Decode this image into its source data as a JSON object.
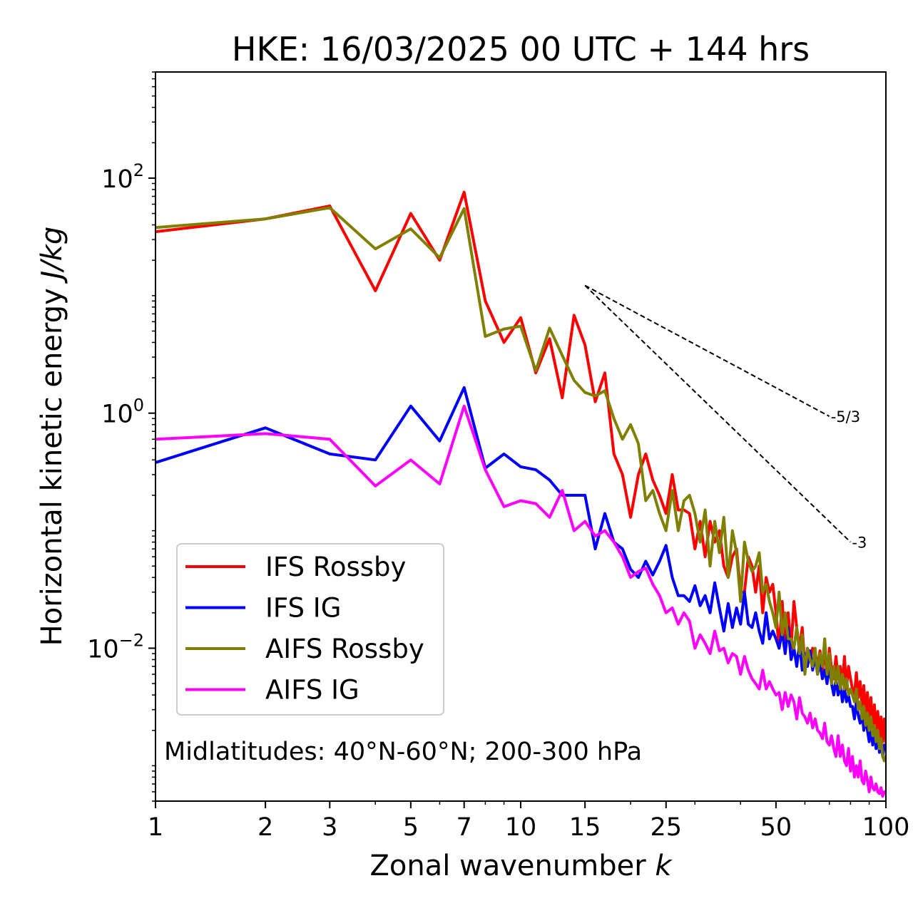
{
  "chart_data": {
    "type": "line",
    "title": "HKE: 16/03/2025 00 UTC + 144 hrs",
    "xlabel": "Zonal wavenumber",
    "xlabel_italic": "k",
    "ylabel": "Horizontal kinetic energy",
    "ylabel_italic": "J/kg",
    "xscale": "log",
    "yscale": "log",
    "xlim": [
      1,
      100
    ],
    "ylim": [
      0.0005,
      800
    ],
    "x_ticks": [
      1,
      2,
      3,
      5,
      7,
      10,
      15,
      25,
      50,
      100
    ],
    "x_tick_labels": [
      "1",
      "2",
      "3",
      "5",
      "7",
      "10",
      "15",
      "25",
      "50",
      "100"
    ],
    "y_ticks": [
      100,
      1,
      0.01
    ],
    "y_tick_labels": [
      {
        "base": "10",
        "exp": "2"
      },
      {
        "base": "10",
        "exp": "0"
      },
      {
        "base": "10",
        "exp": "−2"
      }
    ],
    "annotation": "Midlatitudes: 40°N-60°N; 200-300 hPa",
    "legend_placement": "lower-left",
    "reference_slopes": [
      {
        "label": "-5/3",
        "slope": -1.6667,
        "x": [
          15,
          70
        ],
        "y": [
          12.2,
          0.94
        ]
      },
      {
        "label": "-3",
        "slope": -3,
        "x": [
          15,
          80
        ],
        "y": [
          12.2,
          0.08
        ]
      }
    ],
    "series": [
      {
        "name": "IFS Rossby",
        "color": "#ff0000",
        "x": [
          1,
          2,
          3,
          4,
          5,
          6,
          7,
          8,
          9,
          10,
          11,
          12,
          13,
          14,
          15,
          16,
          17,
          18,
          19,
          20,
          21,
          22,
          23,
          24,
          25,
          26,
          27,
          28,
          29,
          30,
          31,
          32,
          33,
          34,
          35,
          36,
          37,
          38,
          39,
          40,
          41,
          42,
          43,
          44,
          45,
          46,
          47,
          48,
          49,
          50,
          51,
          52,
          53,
          54,
          55,
          56,
          57,
          58,
          59,
          60,
          61,
          62,
          63,
          64,
          65,
          66,
          67,
          68,
          69,
          70,
          71,
          72,
          73,
          74,
          75,
          76,
          77,
          78,
          79,
          80,
          81,
          82,
          83,
          84,
          85,
          86,
          87,
          88,
          89,
          90,
          91,
          92,
          93,
          94,
          95,
          96,
          97,
          98,
          99,
          100
        ],
        "y": [
          35,
          45,
          58,
          11,
          50,
          20,
          76,
          9,
          4,
          6.5,
          2.2,
          4.3,
          1.35,
          6.8,
          3.8,
          1.25,
          2.2,
          0.45,
          0.3,
          0.13,
          0.3,
          0.45,
          0.27,
          0.2,
          0.14,
          0.3,
          0.15,
          0.15,
          0.14,
          0.07,
          0.12,
          0.06,
          0.12,
          0.08,
          0.1,
          0.05,
          0.04,
          0.06,
          0.07,
          0.03,
          0.03,
          0.06,
          0.05,
          0.03,
          0.05,
          0.02,
          0.04,
          0.03,
          0.035,
          0.02,
          0.01,
          0.025,
          0.01,
          0.02,
          0.01,
          0.025,
          0.015,
          0.01,
          0.015,
          0.007,
          0.01,
          0.008,
          0.01,
          0.009,
          0.007,
          0.0095,
          0.006,
          0.012,
          0.005,
          0.01,
          0.0065,
          0.0055,
          0.0085,
          0.0055,
          0.007,
          0.005,
          0.0085,
          0.0045,
          0.007,
          0.0055,
          0.0045,
          0.004,
          0.0062,
          0.0038,
          0.0052,
          0.0032,
          0.0048,
          0.0028,
          0.0042,
          0.0025,
          0.0038,
          0.0021,
          0.0033,
          0.0019,
          0.0029,
          0.0017,
          0.0026,
          0.0016,
          0.0025,
          0.0016
        ]
      },
      {
        "name": "IFS IG",
        "color": "#0000ff",
        "x": [
          1,
          2,
          3,
          4,
          5,
          6,
          7,
          8,
          9,
          10,
          11,
          12,
          13,
          14,
          15,
          16,
          17,
          18,
          19,
          20,
          21,
          22,
          23,
          24,
          25,
          26,
          27,
          28,
          29,
          30,
          31,
          32,
          33,
          34,
          35,
          36,
          37,
          38,
          39,
          40,
          41,
          42,
          43,
          44,
          45,
          46,
          47,
          48,
          49,
          50,
          51,
          52,
          53,
          54,
          55,
          56,
          57,
          58,
          59,
          60,
          61,
          62,
          63,
          64,
          65,
          66,
          67,
          68,
          69,
          70,
          71,
          72,
          73,
          74,
          75,
          76,
          77,
          78,
          79,
          80,
          81,
          82,
          83,
          84,
          85,
          86,
          87,
          88,
          89,
          90,
          91,
          92,
          93,
          94,
          95,
          96,
          97,
          98,
          99,
          100
        ],
        "y": [
          0.38,
          0.75,
          0.45,
          0.4,
          1.15,
          0.58,
          1.65,
          0.34,
          0.45,
          0.35,
          0.33,
          0.27,
          0.2,
          0.2,
          0.2,
          0.07,
          0.14,
          0.08,
          0.07,
          0.047,
          0.04,
          0.055,
          0.042,
          0.055,
          0.075,
          0.04,
          0.028,
          0.028,
          0.025,
          0.034,
          0.023,
          0.028,
          0.02,
          0.036,
          0.022,
          0.014,
          0.024,
          0.015,
          0.022,
          0.016,
          0.03,
          0.016,
          0.015,
          0.02,
          0.014,
          0.011,
          0.02,
          0.012,
          0.014,
          0.012,
          0.01,
          0.014,
          0.009,
          0.015,
          0.008,
          0.01,
          0.007,
          0.011,
          0.0065,
          0.009,
          0.007,
          0.0095,
          0.0065,
          0.0085,
          0.006,
          0.0075,
          0.0055,
          0.0065,
          0.005,
          0.007,
          0.005,
          0.004,
          0.0055,
          0.004,
          0.005,
          0.0035,
          0.0045,
          0.0035,
          0.004,
          0.0032,
          0.0032,
          0.0025,
          0.0035,
          0.0027,
          0.0023,
          0.003,
          0.002,
          0.0025,
          0.002,
          0.0016,
          0.0022,
          0.0015,
          0.002,
          0.0014,
          0.0018,
          0.0013,
          0.0016,
          0.0012,
          0.0015,
          0.0014
        ]
      },
      {
        "name": "AIFS Rossby",
        "color": "#808000",
        "x": [
          1,
          2,
          3,
          4,
          5,
          6,
          7,
          8,
          9,
          10,
          11,
          12,
          13,
          14,
          15,
          16,
          17,
          18,
          19,
          20,
          21,
          22,
          23,
          24,
          25,
          26,
          27,
          28,
          29,
          30,
          31,
          32,
          33,
          34,
          35,
          36,
          37,
          38,
          39,
          40,
          41,
          42,
          43,
          44,
          45,
          46,
          47,
          48,
          49,
          50,
          51,
          52,
          53,
          54,
          55,
          56,
          57,
          58,
          59,
          60,
          61,
          62,
          63,
          64,
          65,
          66,
          67,
          68,
          69,
          70,
          71,
          72,
          73,
          74,
          75,
          76,
          77,
          78,
          79,
          80,
          81,
          82,
          83,
          84,
          85,
          86,
          87,
          88,
          89,
          90,
          91,
          92,
          93,
          94,
          95,
          96,
          97,
          98,
          99,
          100
        ],
        "y": [
          38,
          45,
          56,
          25,
          37,
          21,
          55,
          4.5,
          5.2,
          5.5,
          2.3,
          5.3,
          3.1,
          1.9,
          1.5,
          1.4,
          1.55,
          0.9,
          0.6,
          0.8,
          0.55,
          0.18,
          0.22,
          0.14,
          0.1,
          0.22,
          0.1,
          0.18,
          0.2,
          0.14,
          0.08,
          0.15,
          0.05,
          0.12,
          0.065,
          0.13,
          0.04,
          0.1,
          0.065,
          0.025,
          0.08,
          0.055,
          0.045,
          0.05,
          0.065,
          0.03,
          0.035,
          0.025,
          0.02,
          0.015,
          0.03,
          0.013,
          0.02,
          0.012,
          0.012,
          0.01,
          0.015,
          0.009,
          0.013,
          0.006,
          0.01,
          0.008,
          0.007,
          0.01,
          0.006,
          0.009,
          0.007,
          0.012,
          0.006,
          0.009,
          0.005,
          0.007,
          0.005,
          0.007,
          0.0045,
          0.006,
          0.0045,
          0.0055,
          0.004,
          0.0045,
          0.004,
          0.0035,
          0.0045,
          0.003,
          0.0035,
          0.0025,
          0.0032,
          0.0022,
          0.0028,
          0.002,
          0.0026,
          0.0018,
          0.0022,
          0.0016,
          0.002,
          0.0014,
          0.0017,
          0.0012,
          0.0011,
          0.0012
        ]
      },
      {
        "name": "AIFS IG",
        "color": "#ff00ff",
        "x": [
          1,
          2,
          3,
          4,
          5,
          6,
          7,
          8,
          9,
          10,
          11,
          12,
          13,
          14,
          15,
          16,
          17,
          18,
          19,
          20,
          21,
          22,
          23,
          24,
          25,
          26,
          27,
          28,
          29,
          30,
          31,
          32,
          33,
          34,
          35,
          36,
          37,
          38,
          39,
          40,
          41,
          42,
          43,
          44,
          45,
          46,
          47,
          48,
          49,
          50,
          51,
          52,
          53,
          54,
          55,
          56,
          57,
          58,
          59,
          60,
          61,
          62,
          63,
          64,
          65,
          66,
          67,
          68,
          69,
          70,
          71,
          72,
          73,
          74,
          75,
          76,
          77,
          78,
          79,
          80,
          81,
          82,
          83,
          84,
          85,
          86,
          87,
          88,
          89,
          90,
          91,
          92,
          93,
          94,
          95,
          96,
          97,
          98,
          99,
          100
        ],
        "y": [
          0.6,
          0.67,
          0.6,
          0.24,
          0.4,
          0.25,
          1.15,
          0.33,
          0.16,
          0.18,
          0.17,
          0.13,
          0.22,
          0.1,
          0.12,
          0.09,
          0.1,
          0.08,
          0.06,
          0.04,
          0.045,
          0.048,
          0.035,
          0.028,
          0.02,
          0.022,
          0.016,
          0.02,
          0.017,
          0.01,
          0.013,
          0.011,
          0.009,
          0.014,
          0.0095,
          0.01,
          0.0075,
          0.009,
          0.0085,
          0.006,
          0.0085,
          0.0065,
          0.0055,
          0.005,
          0.0045,
          0.0065,
          0.0045,
          0.0052,
          0.0045,
          0.004,
          0.0042,
          0.003,
          0.0042,
          0.0032,
          0.004,
          0.0035,
          0.0025,
          0.0038,
          0.0028,
          0.0026,
          0.0023,
          0.0028,
          0.0021,
          0.0025,
          0.002,
          0.0019,
          0.0017,
          0.0023,
          0.0016,
          0.0015,
          0.0018,
          0.0014,
          0.0012,
          0.0018,
          0.0012,
          0.0015,
          0.0011,
          0.001,
          0.0014,
          0.0009,
          0.0012,
          0.0008,
          0.001,
          0.0008,
          0.0011,
          0.00075,
          0.0007,
          0.0009,
          0.00075,
          0.0006,
          0.0008,
          0.00065,
          0.00062,
          0.0007,
          0.0006,
          0.00058,
          0.00065,
          0.00055,
          0.0006,
          0.00058
        ]
      }
    ]
  }
}
